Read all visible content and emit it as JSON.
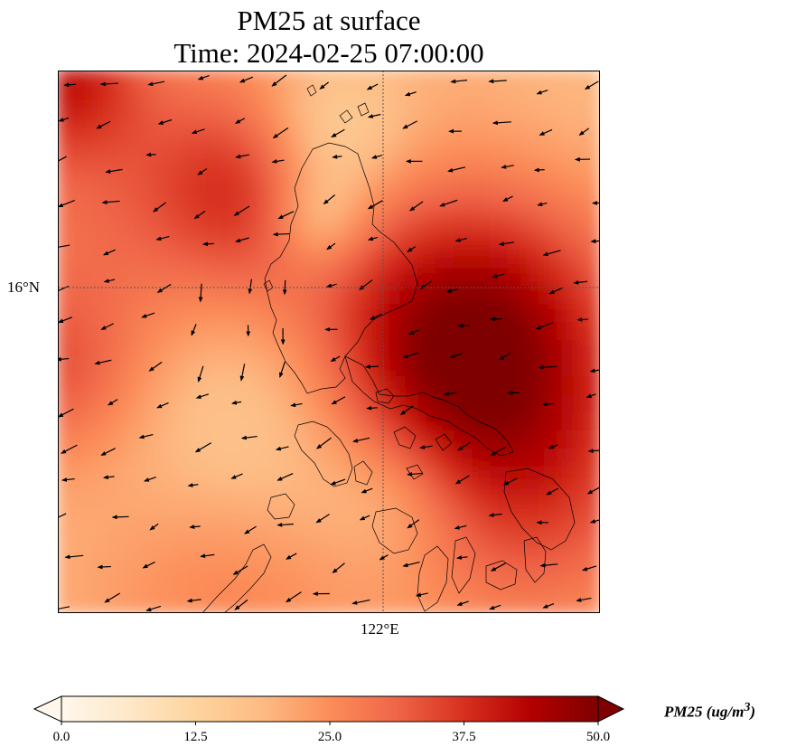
{
  "title_line1": "PM25 at surface",
  "title_line2": "Time: 2024-02-25 07:00:00",
  "lat_label": "16°N",
  "lon_label": "122°E",
  "colorbar": {
    "ticks": [
      "0.0",
      "12.5",
      "25.0",
      "37.5",
      "50.0"
    ],
    "title": "PM25 (ug/m",
    "title_sup": "3",
    "title_close": ")",
    "range": [
      0,
      50
    ],
    "colormap": "OrRd",
    "colors": [
      "#fff7ec",
      "#fee8c8",
      "#fdd49e",
      "#fdbb84",
      "#fc8d59",
      "#ef6548",
      "#d7301f",
      "#b30000",
      "#7f0000"
    ]
  }
}
